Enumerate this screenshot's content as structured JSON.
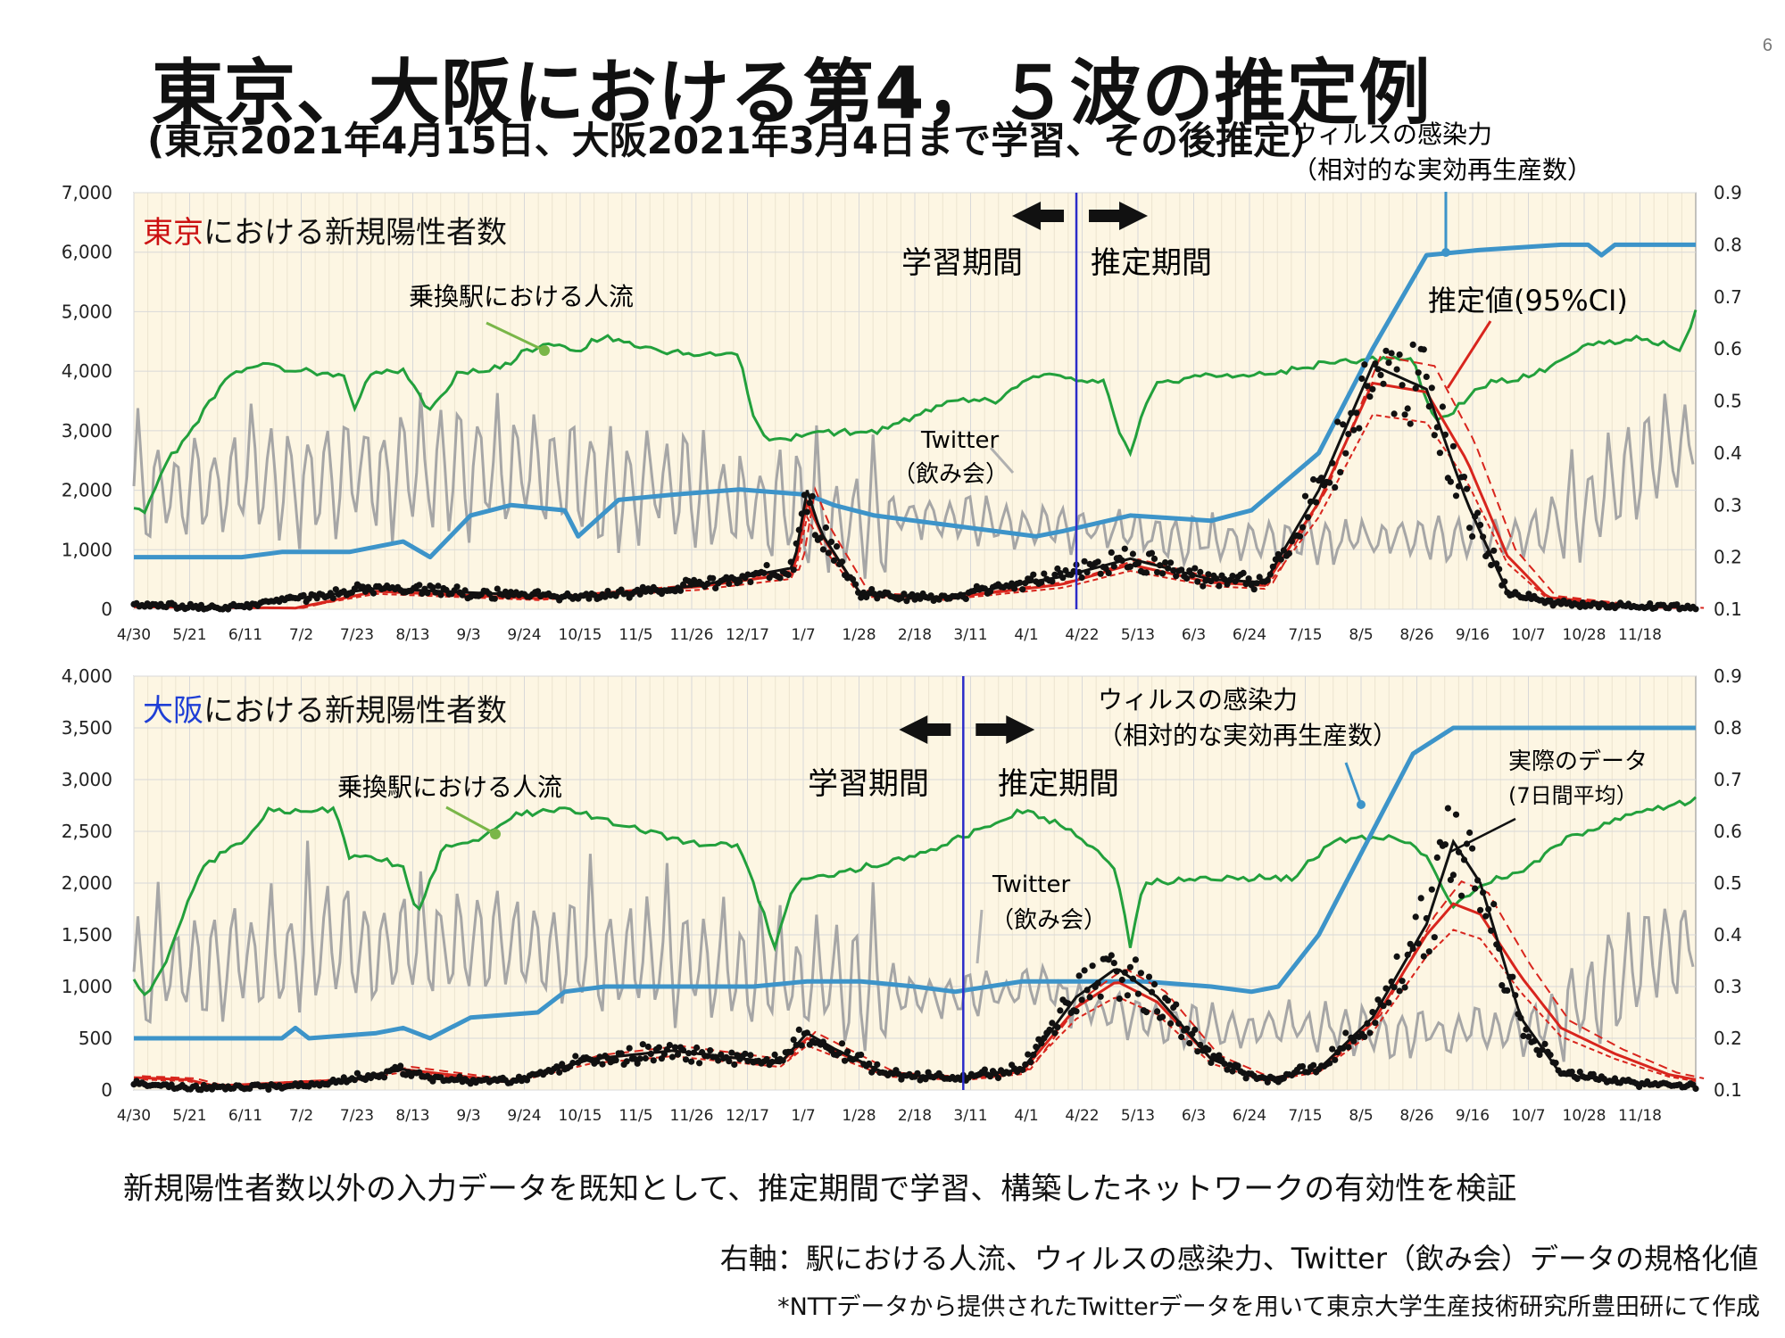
{
  "slide_number": "6",
  "title": "東京、大阪における第4，５波の推定例",
  "subtitle": "(東京2021年4月15日、大阪2021年3月4日まで学習、その後推定）",
  "footer": {
    "line1": "新規陽性者数以外の入力データを既知として、推定期間で学習、構築したネットワークの有効性を検証",
    "line2": "右軸：駅における人流、ウィルスの感染力、Twitter（飲み会）データの規格化値",
    "line3": "*NTTデータから提供されたTwitterデータを用いて東京大学生産技術研究所豊田研にて作成"
  },
  "colors": {
    "panel_bg": "#fdf6e3",
    "grid": "#d8d8d8",
    "people_flow": "#22a03c",
    "infectivity": "#3d94c9",
    "twitter": "#a6a6a6",
    "estimate": "#d8251d",
    "actual": "#111111",
    "divider": "#2c2cc8",
    "tokyo_label": "#cc1111",
    "osaka_label": "#1f3fd6"
  },
  "chart_data": [
    {
      "type": "line",
      "name": "tokyo",
      "title_highlight": "東京",
      "title_rest": "における新規陽性者数",
      "x_ticks": [
        "4/30",
        "5/21",
        "6/11",
        "7/2",
        "7/23",
        "8/13",
        "9/3",
        "9/24",
        "10/15",
        "11/5",
        "11/26",
        "12/17",
        "1/7",
        "1/28",
        "2/18",
        "3/11",
        "4/1",
        "4/22",
        "5/13",
        "6/3",
        "6/24",
        "7/15",
        "8/5",
        "8/26",
        "9/16",
        "10/7",
        "10/28",
        "11/18"
      ],
      "x_range_days": [
        0,
        580
      ],
      "y_left": {
        "min": 0,
        "max": 7000,
        "ticks": [
          "0",
          "1,000",
          "2,000",
          "3,000",
          "4,000",
          "5,000",
          "6,000",
          "7,000"
        ]
      },
      "y_right": {
        "min": 0.1,
        "max": 0.9,
        "ticks": [
          "0.1",
          "0.2",
          "0.3",
          "0.4",
          "0.5",
          "0.6",
          "0.7",
          "0.8",
          "0.9"
        ]
      },
      "grid": true,
      "train_end_day": 350,
      "labels": {
        "learning": "学習期間",
        "estimation": "推定期間",
        "people_flow": "乗換駅における人流",
        "twitter_line1": "Twitter",
        "twitter_line2": "（飲み会）",
        "infectivity_line1": "ウィルスの感染力",
        "infectivity_line2": "（相対的な実効再生産数）",
        "estimate": "推定値(95%CI)"
      },
      "cases_actual_peaks": [
        [
          0,
          80
        ],
        [
          35,
          25
        ],
        [
          90,
          350
        ],
        [
          165,
          200
        ],
        [
          210,
          400
        ],
        [
          245,
          700
        ],
        [
          250,
          2000
        ],
        [
          255,
          1300
        ],
        [
          270,
          250
        ],
        [
          300,
          200
        ],
        [
          345,
          550
        ],
        [
          370,
          850
        ],
        [
          400,
          500
        ],
        [
          420,
          450
        ],
        [
          440,
          2000
        ],
        [
          460,
          4100
        ],
        [
          480,
          3700
        ],
        [
          495,
          1800
        ],
        [
          510,
          300
        ],
        [
          525,
          100
        ],
        [
          580,
          30
        ]
      ],
      "cases_estimate": [
        [
          0,
          40
        ],
        [
          60,
          20
        ],
        [
          90,
          300
        ],
        [
          150,
          180
        ],
        [
          210,
          380
        ],
        [
          245,
          600
        ],
        [
          250,
          1800
        ],
        [
          256,
          1200
        ],
        [
          270,
          250
        ],
        [
          300,
          180
        ],
        [
          345,
          420
        ],
        [
          370,
          750
        ],
        [
          400,
          450
        ],
        [
          420,
          400
        ],
        [
          440,
          1800
        ],
        [
          460,
          3800
        ],
        [
          480,
          3650
        ],
        [
          495,
          2500
        ],
        [
          510,
          900
        ],
        [
          525,
          200
        ],
        [
          560,
          40
        ],
        [
          580,
          20
        ]
      ],
      "people_flow": [
        [
          0,
          0.3
        ],
        [
          3,
          0.28
        ],
        [
          12,
          0.38
        ],
        [
          22,
          0.45
        ],
        [
          35,
          0.55
        ],
        [
          45,
          0.57
        ],
        [
          60,
          0.56
        ],
        [
          78,
          0.55
        ],
        [
          82,
          0.49
        ],
        [
          88,
          0.55
        ],
        [
          100,
          0.56
        ],
        [
          110,
          0.48
        ],
        [
          120,
          0.55
        ],
        [
          140,
          0.57
        ],
        [
          145,
          0.6
        ],
        [
          150,
          0.6
        ],
        [
          155,
          0.61
        ],
        [
          165,
          0.59
        ],
        [
          170,
          0.62
        ],
        [
          180,
          0.62
        ],
        [
          190,
          0.6
        ],
        [
          210,
          0.59
        ],
        [
          225,
          0.59
        ],
        [
          230,
          0.47
        ],
        [
          236,
          0.42
        ],
        [
          255,
          0.44
        ],
        [
          275,
          0.44
        ],
        [
          290,
          0.47
        ],
        [
          305,
          0.5
        ],
        [
          320,
          0.5
        ],
        [
          335,
          0.55
        ],
        [
          350,
          0.54
        ],
        [
          360,
          0.54
        ],
        [
          365,
          0.45
        ],
        [
          370,
          0.4
        ],
        [
          375,
          0.49
        ],
        [
          380,
          0.53
        ],
        [
          395,
          0.55
        ],
        [
          420,
          0.55
        ],
        [
          440,
          0.57
        ],
        [
          460,
          0.58
        ],
        [
          475,
          0.58
        ],
        [
          480,
          0.5
        ],
        [
          484,
          0.46
        ],
        [
          490,
          0.48
        ],
        [
          500,
          0.53
        ],
        [
          520,
          0.55
        ],
        [
          540,
          0.61
        ],
        [
          560,
          0.62
        ],
        [
          575,
          0.6
        ],
        [
          580,
          0.67
        ]
      ],
      "infectivity": [
        [
          0,
          0.2
        ],
        [
          40,
          0.2
        ],
        [
          55,
          0.21
        ],
        [
          80,
          0.21
        ],
        [
          100,
          0.23
        ],
        [
          110,
          0.2
        ],
        [
          125,
          0.28
        ],
        [
          140,
          0.3
        ],
        [
          160,
          0.29
        ],
        [
          165,
          0.24
        ],
        [
          180,
          0.31
        ],
        [
          200,
          0.32
        ],
        [
          225,
          0.33
        ],
        [
          250,
          0.32
        ],
        [
          260,
          0.3
        ],
        [
          275,
          0.28
        ],
        [
          305,
          0.26
        ],
        [
          335,
          0.24
        ],
        [
          345,
          0.25
        ],
        [
          370,
          0.28
        ],
        [
          400,
          0.27
        ],
        [
          415,
          0.29
        ],
        [
          440,
          0.4
        ],
        [
          460,
          0.6
        ],
        [
          480,
          0.78
        ],
        [
          500,
          0.79
        ],
        [
          530,
          0.8
        ],
        [
          540,
          0.8
        ],
        [
          545,
          0.78
        ],
        [
          550,
          0.8
        ],
        [
          580,
          0.8
        ]
      ],
      "twitter_level": [
        [
          0,
          0.33
        ],
        [
          60,
          0.35
        ],
        [
          100,
          0.37
        ],
        [
          150,
          0.36
        ],
        [
          200,
          0.33
        ],
        [
          240,
          0.29
        ],
        [
          260,
          0.27
        ],
        [
          300,
          0.28
        ],
        [
          330,
          0.26
        ],
        [
          360,
          0.25
        ],
        [
          400,
          0.23
        ],
        [
          440,
          0.23
        ],
        [
          480,
          0.24
        ],
        [
          520,
          0.24
        ],
        [
          540,
          0.3
        ],
        [
          560,
          0.38
        ],
        [
          580,
          0.42
        ]
      ]
    },
    {
      "type": "line",
      "name": "osaka",
      "title_highlight": "大阪",
      "title_rest": "における新規陽性者数",
      "x_ticks": [
        "4/30",
        "5/21",
        "6/11",
        "7/2",
        "7/23",
        "8/13",
        "9/3",
        "9/24",
        "10/15",
        "11/5",
        "11/26",
        "12/17",
        "1/7",
        "1/28",
        "2/18",
        "3/11",
        "4/1",
        "4/22",
        "5/13",
        "6/3",
        "6/24",
        "7/15",
        "8/5",
        "8/26",
        "9/16",
        "10/7",
        "10/28",
        "11/18"
      ],
      "x_range_days": [
        0,
        580
      ],
      "y_left": {
        "min": 0,
        "max": 4000,
        "ticks": [
          "0",
          "500",
          "1,000",
          "1,500",
          "2,000",
          "2,500",
          "3,000",
          "3,500",
          "4,000"
        ]
      },
      "y_right": {
        "min": 0.1,
        "max": 0.9,
        "ticks": [
          "0.1",
          "0.2",
          "0.3",
          "0.4",
          "0.5",
          "0.6",
          "0.7",
          "0.8",
          "0.9"
        ]
      },
      "grid": true,
      "train_end_day": 308,
      "labels": {
        "learning": "学習期間",
        "estimation": "推定期間",
        "people_flow": "乗換駅における人流",
        "twitter_line1": "Twitter",
        "twitter_line2": "（飲み会）",
        "infectivity_line1": "ウィルスの感染力",
        "infectivity_line2": "（相対的な実効再生産数）",
        "actual_line1": "実際のデータ",
        "actual_line2": "(7日間平均）"
      },
      "cases_actual_peaks": [
        [
          0,
          60
        ],
        [
          20,
          20
        ],
        [
          60,
          40
        ],
        [
          80,
          100
        ],
        [
          100,
          200
        ],
        [
          115,
          100
        ],
        [
          140,
          80
        ],
        [
          170,
          300
        ],
        [
          200,
          380
        ],
        [
          240,
          260
        ],
        [
          250,
          550
        ],
        [
          260,
          400
        ],
        [
          280,
          150
        ],
        [
          308,
          120
        ],
        [
          330,
          200
        ],
        [
          350,
          900
        ],
        [
          365,
          1180
        ],
        [
          380,
          900
        ],
        [
          400,
          300
        ],
        [
          420,
          100
        ],
        [
          440,
          200
        ],
        [
          460,
          700
        ],
        [
          480,
          1600
        ],
        [
          490,
          2400
        ],
        [
          500,
          2000
        ],
        [
          515,
          700
        ],
        [
          530,
          150
        ],
        [
          560,
          60
        ],
        [
          580,
          40
        ]
      ],
      "cases_estimate": [
        [
          0,
          120
        ],
        [
          20,
          100
        ],
        [
          30,
          40
        ],
        [
          80,
          100
        ],
        [
          100,
          200
        ],
        [
          140,
          80
        ],
        [
          170,
          300
        ],
        [
          200,
          380
        ],
        [
          240,
          260
        ],
        [
          250,
          500
        ],
        [
          260,
          380
        ],
        [
          280,
          150
        ],
        [
          308,
          110
        ],
        [
          330,
          180
        ],
        [
          350,
          800
        ],
        [
          365,
          1050
        ],
        [
          380,
          850
        ],
        [
          400,
          300
        ],
        [
          420,
          100
        ],
        [
          440,
          200
        ],
        [
          460,
          650
        ],
        [
          480,
          1500
        ],
        [
          490,
          1800
        ],
        [
          500,
          1700
        ],
        [
          515,
          1100
        ],
        [
          530,
          600
        ],
        [
          550,
          350
        ],
        [
          570,
          150
        ],
        [
          580,
          100
        ]
      ],
      "people_flow": [
        [
          0,
          0.32
        ],
        [
          4,
          0.28
        ],
        [
          12,
          0.35
        ],
        [
          25,
          0.53
        ],
        [
          40,
          0.58
        ],
        [
          50,
          0.64
        ],
        [
          75,
          0.64
        ],
        [
          80,
          0.55
        ],
        [
          90,
          0.55
        ],
        [
          100,
          0.53
        ],
        [
          105,
          0.44
        ],
        [
          115,
          0.57
        ],
        [
          130,
          0.59
        ],
        [
          140,
          0.63
        ],
        [
          155,
          0.64
        ],
        [
          165,
          0.64
        ],
        [
          175,
          0.62
        ],
        [
          190,
          0.6
        ],
        [
          205,
          0.58
        ],
        [
          225,
          0.57
        ],
        [
          238,
          0.38
        ],
        [
          245,
          0.5
        ],
        [
          270,
          0.53
        ],
        [
          290,
          0.55
        ],
        [
          308,
          0.59
        ],
        [
          330,
          0.64
        ],
        [
          345,
          0.61
        ],
        [
          360,
          0.55
        ],
        [
          365,
          0.52
        ],
        [
          370,
          0.38
        ],
        [
          375,
          0.5
        ],
        [
          400,
          0.51
        ],
        [
          430,
          0.51
        ],
        [
          445,
          0.58
        ],
        [
          465,
          0.59
        ],
        [
          475,
          0.58
        ],
        [
          480,
          0.55
        ],
        [
          490,
          0.45
        ],
        [
          500,
          0.5
        ],
        [
          515,
          0.52
        ],
        [
          530,
          0.58
        ],
        [
          555,
          0.63
        ],
        [
          570,
          0.65
        ],
        [
          580,
          0.66
        ]
      ],
      "infectivity": [
        [
          0,
          0.2
        ],
        [
          55,
          0.2
        ],
        [
          60,
          0.22
        ],
        [
          65,
          0.2
        ],
        [
          90,
          0.21
        ],
        [
          100,
          0.22
        ],
        [
          110,
          0.2
        ],
        [
          125,
          0.24
        ],
        [
          150,
          0.25
        ],
        [
          160,
          0.29
        ],
        [
          175,
          0.3
        ],
        [
          190,
          0.3
        ],
        [
          230,
          0.3
        ],
        [
          250,
          0.31
        ],
        [
          270,
          0.31
        ],
        [
          290,
          0.3
        ],
        [
          305,
          0.29
        ],
        [
          330,
          0.31
        ],
        [
          355,
          0.31
        ],
        [
          375,
          0.31
        ],
        [
          400,
          0.3
        ],
        [
          415,
          0.29
        ],
        [
          425,
          0.3
        ],
        [
          440,
          0.4
        ],
        [
          460,
          0.6
        ],
        [
          475,
          0.75
        ],
        [
          490,
          0.8
        ],
        [
          520,
          0.8
        ],
        [
          550,
          0.8
        ],
        [
          580,
          0.8
        ]
      ],
      "twitter_level": [
        [
          0,
          0.32
        ],
        [
          60,
          0.37
        ],
        [
          120,
          0.38
        ],
        [
          180,
          0.36
        ],
        [
          240,
          0.31
        ],
        [
          280,
          0.29
        ],
        [
          310,
          0.28
        ],
        [
          340,
          0.3
        ],
        [
          360,
          0.25
        ],
        [
          400,
          0.22
        ],
        [
          440,
          0.22
        ],
        [
          480,
          0.21
        ],
        [
          520,
          0.22
        ],
        [
          540,
          0.28
        ],
        [
          560,
          0.35
        ],
        [
          580,
          0.38
        ]
      ]
    }
  ]
}
